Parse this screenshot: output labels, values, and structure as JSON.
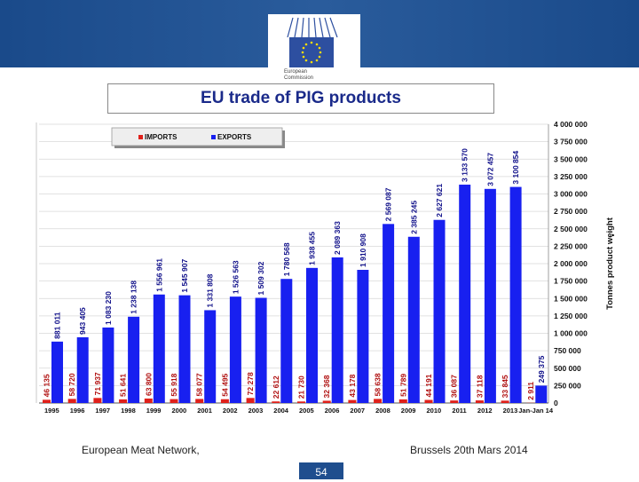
{
  "slide": {
    "logo_text_line1": "European",
    "logo_text_line2": "Commission",
    "footer_left": "European Meat Network,",
    "footer_right": "Brussels 20th Mars 2014",
    "page_number": "54",
    "colors": {
      "header": "#1f4e8e",
      "imports": "#e0201a",
      "exports": "#1820f0",
      "title": "#1a2a8a"
    }
  },
  "chart_data": {
    "type": "bar",
    "title": "EU trade of PIG products",
    "ylabel": "Tonnes product weight",
    "ylim": [
      0,
      4000000
    ],
    "yticks": [
      "0",
      "250 000",
      "500 000",
      "750 000",
      "1 000 000",
      "1 250 000",
      "1 500 000",
      "1 750 000",
      "2 000 000",
      "2 250 000",
      "2 500 000",
      "2 750 000",
      "3 000 000",
      "3 250 000",
      "3 500 000",
      "3 750 000",
      "4 000 000"
    ],
    "ytick_values": [
      0,
      250000,
      500000,
      750000,
      1000000,
      1250000,
      1500000,
      1750000,
      2000000,
      2250000,
      2500000,
      2750000,
      3000000,
      3250000,
      3500000,
      3750000,
      4000000
    ],
    "categories": [
      "1995",
      "1996",
      "1997",
      "1998",
      "1999",
      "2000",
      "2001",
      "2002",
      "2003",
      "2004",
      "2005",
      "2006",
      "2007",
      "2008",
      "2009",
      "2010",
      "2011",
      "2012",
      "2013",
      "Jan-Jan 14"
    ],
    "legend": {
      "position": "top-left",
      "imports_label": "IMPORTS",
      "exports_label": "EXPORTS"
    },
    "series": [
      {
        "name": "IMPORTS",
        "values": [
          46135,
          58720,
          71937,
          51641,
          63800,
          55918,
          58077,
          54495,
          72278,
          22612,
          21730,
          32368,
          43178,
          58638,
          51789,
          44191,
          36087,
          37118,
          33845,
          2911
        ],
        "labels": [
          "46 135",
          "58 720",
          "71 937",
          "51 641",
          "63 800",
          "55 918",
          "58 077",
          "54 495",
          "72 278",
          "22 612",
          "21 730",
          "32 368",
          "43 178",
          "58 638",
          "51 789",
          "44 191",
          "36 087",
          "37 118",
          "33 845",
          "2 911"
        ]
      },
      {
        "name": "EXPORTS",
        "values": [
          881011,
          943405,
          1083230,
          1238138,
          1556961,
          1545907,
          1331808,
          1526563,
          1509302,
          1780568,
          1938455,
          2089363,
          1910908,
          2569087,
          2385245,
          2627621,
          3133570,
          3072457,
          3100854,
          249375
        ],
        "labels": [
          "881 011",
          "943 405",
          "1 083 230",
          "1 238 138",
          "1 556 961",
          "1 545 907",
          "1 331 808",
          "1 526 563",
          "1 509 302",
          "1 780 568",
          "1 938 455",
          "2 089 363",
          "1 910 908",
          "2 569 087",
          "2 385 245",
          "2 627 621",
          "3 133 570",
          "3 072 457",
          "3 100 854",
          "249 375"
        ]
      }
    ]
  }
}
